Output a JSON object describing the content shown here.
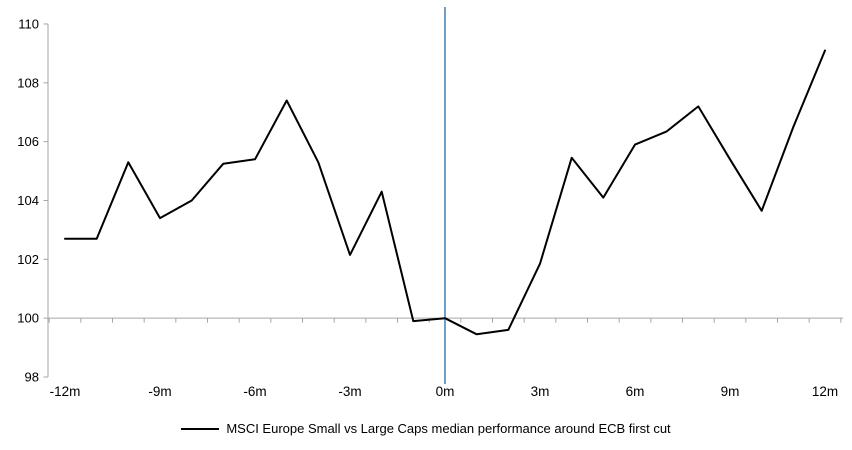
{
  "chart_data": {
    "type": "line",
    "title": "",
    "xlabel": "",
    "ylabel": "",
    "xlim": [
      -12,
      12
    ],
    "ylim": [
      98,
      110
    ],
    "grid": "horizontal line at y=100 only",
    "legend_position": "bottom-center",
    "x_months": [
      -12,
      -11,
      -10,
      -9,
      -8,
      -7,
      -6,
      -5,
      -4,
      -3,
      -2,
      -1,
      0,
      1,
      2,
      3,
      4,
      5,
      6,
      7,
      8,
      9,
      10,
      11,
      12
    ],
    "x_tick_labels": [
      "-12m",
      "-9m",
      "-6m",
      "-3m",
      "0m",
      "3m",
      "6m",
      "9m",
      "12m"
    ],
    "x_tick_months": [
      -12,
      -9,
      -6,
      -3,
      0,
      3,
      6,
      9,
      12
    ],
    "y_tick_values": [
      98,
      100,
      102,
      104,
      106,
      108,
      110
    ],
    "y_tick_labels": [
      "98",
      "100",
      "102",
      "104",
      "106",
      "108",
      "110"
    ],
    "series": [
      {
        "name": "MSCI Europe Small vs Large Caps median performance around ECB first cut",
        "color": "#000000",
        "values": [
          102.7,
          102.7,
          105.3,
          103.4,
          104.0,
          105.25,
          105.4,
          107.4,
          105.3,
          102.15,
          104.3,
          99.9,
          100.0,
          99.45,
          99.6,
          101.85,
          105.45,
          104.1,
          105.9,
          106.35,
          107.2,
          105.4,
          103.65,
          106.5,
          109.1
        ]
      }
    ],
    "reference_lines": {
      "vertical_event_line_at_x": 0,
      "vertical_event_line_color": "#6ea0cd",
      "horizontal_baseline_at_y": 100,
      "horizontal_baseline_color": "#a6a6a6"
    },
    "axis_color": "#a6a6a6",
    "tick_label_color": "#000000"
  }
}
